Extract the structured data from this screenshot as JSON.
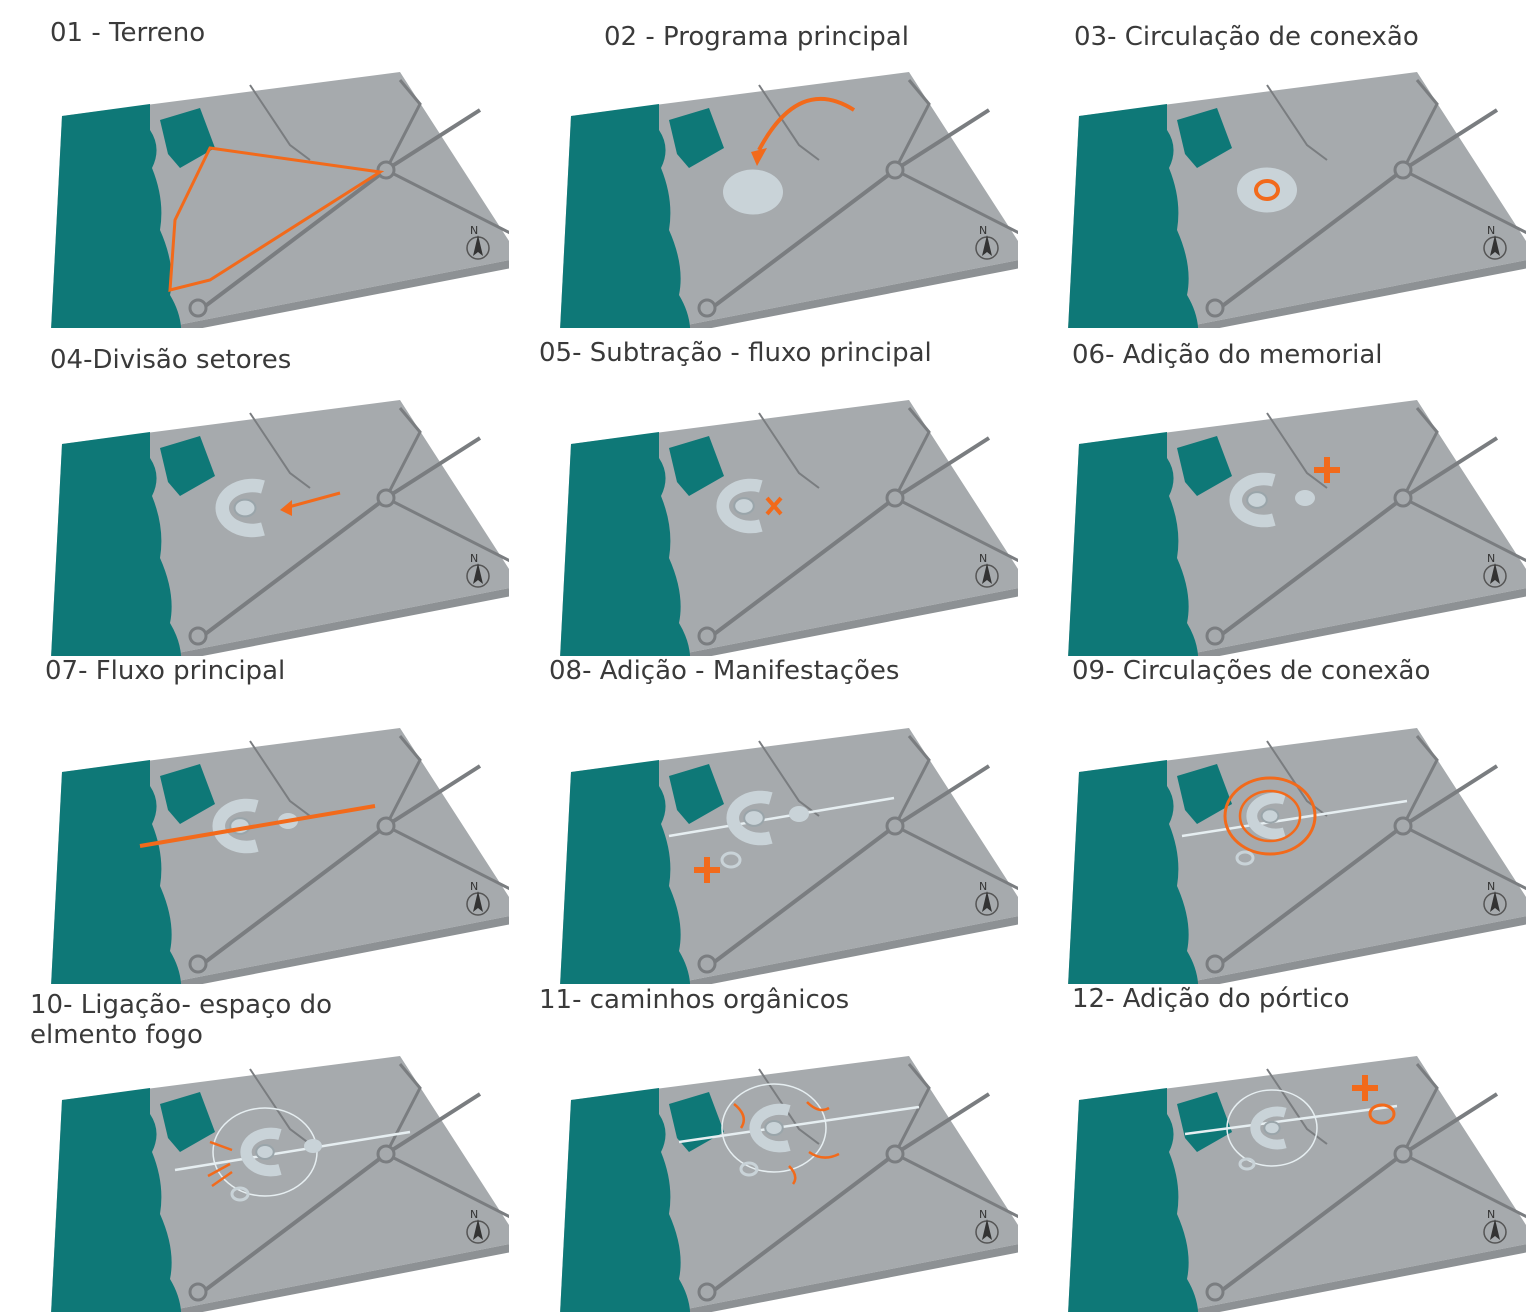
{
  "panels": [
    {
      "title": "01 - Terreno"
    },
    {
      "title": "02 - Programa principal"
    },
    {
      "title": "03- Circulação de conexão"
    },
    {
      "title": "04-Divisão setores"
    },
    {
      "title": "05- Subtração - fluxo principal"
    },
    {
      "title": "06- Adição do memorial"
    },
    {
      "title": "07- Fluxo principal"
    },
    {
      "title": "08- Adição - Manifestações"
    },
    {
      "title": "09- Circulações de conexão"
    },
    {
      "title": "10- Ligação- espaço do elmento fogo"
    },
    {
      "title": "11- caminhos orgânicos"
    },
    {
      "title": "12- Adição do pórtico"
    }
  ],
  "north_label": "N",
  "colors": {
    "water": "#0e7877",
    "ground": "#a6aaad",
    "ground_shadow": "#8d9194",
    "road": "#7a7d80",
    "building": "#c9d3d8",
    "accent": "#f26a1b"
  }
}
